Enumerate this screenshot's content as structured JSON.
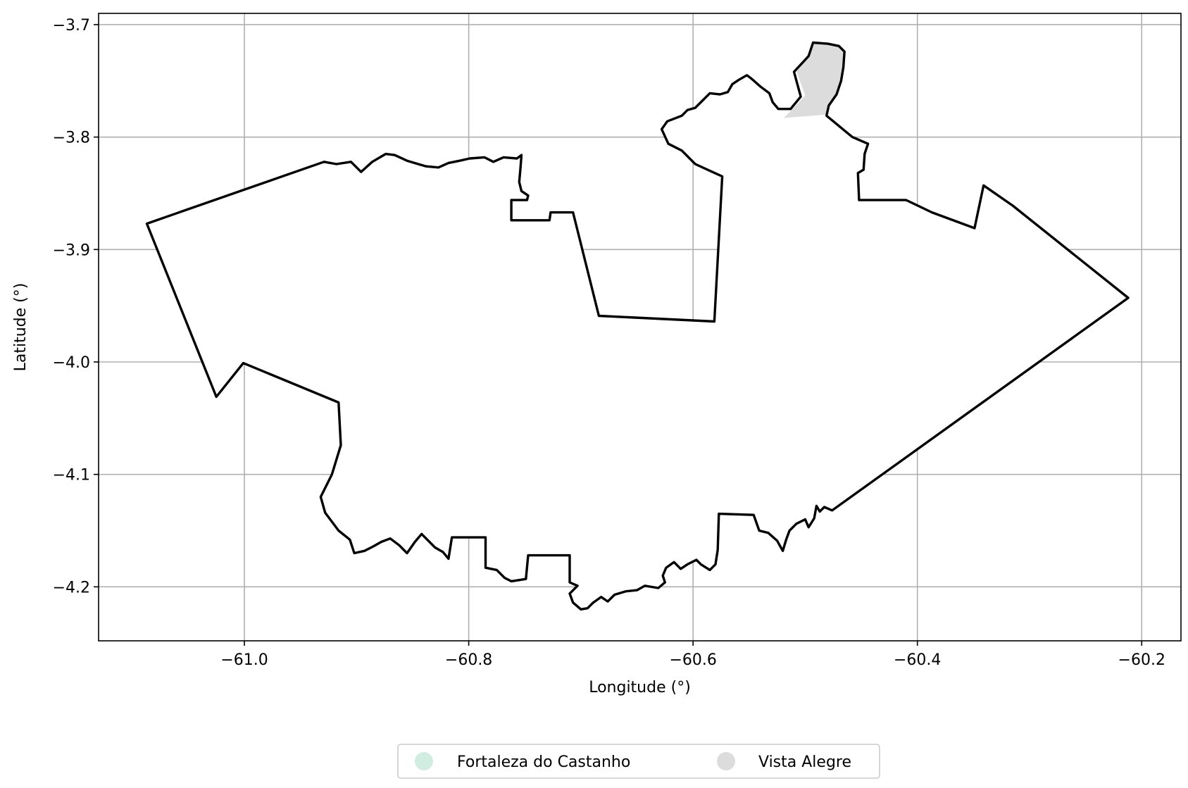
{
  "chart_data": {
    "type": "map",
    "xlabel": "Longitude (°)",
    "ylabel": "Latitude (°)",
    "xlim": [
      -61.13,
      -60.165
    ],
    "ylim": [
      -4.248,
      -3.69
    ],
    "grid": true,
    "xticks": [
      -61.0,
      -60.8,
      -60.6,
      -60.4,
      -60.2
    ],
    "xtick_labels": [
      "−61.0",
      "−60.8",
      "−60.6",
      "−60.4",
      "−60.2"
    ],
    "yticks": [
      -3.7,
      -3.8,
      -3.9,
      -4.0,
      -4.1,
      -4.2
    ],
    "ytick_labels": [
      "−3.7",
      "−3.8",
      "−3.9",
      "−4.0",
      "−4.1",
      "−4.2"
    ],
    "legend_position": "bottom-center",
    "regions": [
      {
        "name": "Fortaleza do Castanho",
        "color": "#d1ece1",
        "outline": [
          [
            -61.087,
            -3.877
          ],
          [
            -60.929,
            -3.822
          ],
          [
            -60.918,
            -3.824
          ],
          [
            -60.905,
            -3.822
          ],
          [
            -60.896,
            -3.831
          ],
          [
            -60.886,
            -3.822
          ],
          [
            -60.874,
            -3.815
          ],
          [
            -60.866,
            -3.816
          ],
          [
            -60.855,
            -3.821
          ],
          [
            -60.845,
            -3.824
          ],
          [
            -60.838,
            -3.826
          ],
          [
            -60.827,
            -3.827
          ],
          [
            -60.818,
            -3.823
          ],
          [
            -60.808,
            -3.821
          ],
          [
            -60.799,
            -3.819
          ],
          [
            -60.786,
            -3.818
          ],
          [
            -60.778,
            -3.822
          ],
          [
            -60.769,
            -3.818
          ],
          [
            -60.757,
            -3.819
          ],
          [
            -60.753,
            -3.816
          ],
          [
            -60.754,
            -3.829
          ],
          [
            -60.755,
            -3.84
          ],
          [
            -60.753,
            -3.848
          ],
          [
            -60.747,
            -3.852
          ],
          [
            -60.748,
            -3.856
          ],
          [
            -60.762,
            -3.856
          ],
          [
            -60.762,
            -3.874
          ],
          [
            -60.728,
            -3.874
          ],
          [
            -60.727,
            -3.867
          ],
          [
            -60.707,
            -3.867
          ],
          [
            -60.684,
            -3.959
          ],
          [
            -60.581,
            -3.964
          ],
          [
            -60.574,
            -3.835
          ],
          [
            -60.598,
            -3.824
          ],
          [
            -60.61,
            -3.812
          ],
          [
            -60.622,
            -3.806
          ],
          [
            -60.628,
            -3.793
          ],
          [
            -60.623,
            -3.786
          ],
          [
            -60.61,
            -3.781
          ],
          [
            -60.605,
            -3.776
          ],
          [
            -60.598,
            -3.774
          ],
          [
            -60.592,
            -3.768
          ],
          [
            -60.585,
            -3.761
          ],
          [
            -60.576,
            -3.762
          ],
          [
            -60.569,
            -3.76
          ],
          [
            -60.565,
            -3.753
          ],
          [
            -60.559,
            -3.749
          ],
          [
            -60.552,
            -3.745
          ],
          [
            -60.548,
            -3.748
          ],
          [
            -60.54,
            -3.755
          ],
          [
            -60.532,
            -3.761
          ],
          [
            -60.529,
            -3.769
          ],
          [
            -60.524,
            -3.775
          ],
          [
            -60.513,
            -3.775
          ],
          [
            -60.504,
            -3.764
          ],
          [
            -60.51,
            -3.742
          ],
          [
            -60.497,
            -3.728
          ],
          [
            -60.493,
            -3.716
          ],
          [
            -60.48,
            -3.717
          ],
          [
            -60.47,
            -3.719
          ],
          [
            -60.465,
            -3.724
          ],
          [
            -60.466,
            -3.738
          ],
          [
            -60.468,
            -3.75
          ],
          [
            -60.472,
            -3.762
          ],
          [
            -60.479,
            -3.772
          ],
          [
            -60.481,
            -3.781
          ],
          [
            -60.458,
            -3.8
          ],
          [
            -60.444,
            -3.806
          ],
          [
            -60.447,
            -3.815
          ],
          [
            -60.448,
            -3.829
          ],
          [
            -60.453,
            -3.832
          ],
          [
            -60.452,
            -3.856
          ],
          [
            -60.41,
            -3.856
          ],
          [
            -60.387,
            -3.867
          ],
          [
            -60.349,
            -3.881
          ],
          [
            -60.341,
            -3.843
          ],
          [
            -60.315,
            -3.861
          ],
          [
            -60.212,
            -3.943
          ],
          [
            -60.476,
            -4.132
          ],
          [
            -60.483,
            -4.129
          ],
          [
            -60.487,
            -4.133
          ],
          [
            -60.49,
            -4.128
          ],
          [
            -60.492,
            -4.139
          ],
          [
            -60.497,
            -4.147
          ],
          [
            -60.5,
            -4.14
          ],
          [
            -60.508,
            -4.144
          ],
          [
            -60.514,
            -4.15
          ],
          [
            -60.517,
            -4.158
          ],
          [
            -60.52,
            -4.168
          ],
          [
            -60.525,
            -4.159
          ],
          [
            -60.533,
            -4.152
          ],
          [
            -60.541,
            -4.15
          ],
          [
            -60.546,
            -4.136
          ],
          [
            -60.577,
            -4.135
          ],
          [
            -60.578,
            -4.167
          ],
          [
            -60.58,
            -4.18
          ],
          [
            -60.585,
            -4.185
          ],
          [
            -60.593,
            -4.18
          ],
          [
            -60.597,
            -4.176
          ],
          [
            -60.605,
            -4.18
          ],
          [
            -60.611,
            -4.184
          ],
          [
            -60.617,
            -4.178
          ],
          [
            -60.624,
            -4.183
          ],
          [
            -60.627,
            -4.19
          ],
          [
            -60.625,
            -4.196
          ],
          [
            -60.631,
            -4.201
          ],
          [
            -60.643,
            -4.199
          ],
          [
            -60.65,
            -4.203
          ],
          [
            -60.66,
            -4.204
          ],
          [
            -60.67,
            -4.207
          ],
          [
            -60.676,
            -4.213
          ],
          [
            -60.682,
            -4.209
          ],
          [
            -60.689,
            -4.214
          ],
          [
            -60.694,
            -4.219
          ],
          [
            -60.7,
            -4.22
          ],
          [
            -60.707,
            -4.214
          ],
          [
            -60.71,
            -4.206
          ],
          [
            -60.703,
            -4.199
          ],
          [
            -60.71,
            -4.196
          ],
          [
            -60.71,
            -4.172
          ],
          [
            -60.747,
            -4.172
          ],
          [
            -60.749,
            -4.193
          ],
          [
            -60.762,
            -4.195
          ],
          [
            -60.768,
            -4.192
          ],
          [
            -60.775,
            -4.185
          ],
          [
            -60.785,
            -4.183
          ],
          [
            -60.785,
            -4.156
          ],
          [
            -60.815,
            -4.156
          ],
          [
            -60.818,
            -4.175
          ],
          [
            -60.823,
            -4.169
          ],
          [
            -60.83,
            -4.165
          ],
          [
            -60.836,
            -4.159
          ],
          [
            -60.842,
            -4.153
          ],
          [
            -60.848,
            -4.16
          ],
          [
            -60.855,
            -4.17
          ],
          [
            -60.862,
            -4.163
          ],
          [
            -60.87,
            -4.157
          ],
          [
            -60.878,
            -4.16
          ],
          [
            -60.885,
            -4.164
          ],
          [
            -60.893,
            -4.168
          ],
          [
            -60.902,
            -4.17
          ],
          [
            -60.906,
            -4.158
          ],
          [
            -60.916,
            -4.15
          ],
          [
            -60.928,
            -4.134
          ],
          [
            -60.932,
            -4.12
          ],
          [
            -60.922,
            -4.1
          ],
          [
            -60.914,
            -4.074
          ],
          [
            -60.916,
            -4.036
          ],
          [
            -61.001,
            -4.001
          ],
          [
            -61.025,
            -4.031
          ],
          [
            -61.087,
            -3.877
          ]
        ]
      },
      {
        "name": "Vista Alegre",
        "color": "#dcdcdc",
        "outline": [
          [
            -60.519,
            -3.783
          ],
          [
            -60.5,
            -3.763
          ],
          [
            -60.508,
            -3.741
          ],
          [
            -60.496,
            -3.728
          ],
          [
            -60.493,
            -3.716
          ],
          [
            -60.481,
            -3.717
          ],
          [
            -60.47,
            -3.72
          ],
          [
            -60.465,
            -3.725
          ],
          [
            -60.466,
            -3.738
          ],
          [
            -60.468,
            -3.75
          ],
          [
            -60.472,
            -3.762
          ],
          [
            -60.479,
            -3.772
          ],
          [
            -60.481,
            -3.78
          ],
          [
            -60.519,
            -3.783
          ]
        ]
      }
    ]
  },
  "legend": {
    "items": [
      {
        "label": "Fortaleza do Castanho",
        "color": "#d1ece1"
      },
      {
        "label": "Vista Alegre",
        "color": "#dcdcdc"
      }
    ]
  }
}
